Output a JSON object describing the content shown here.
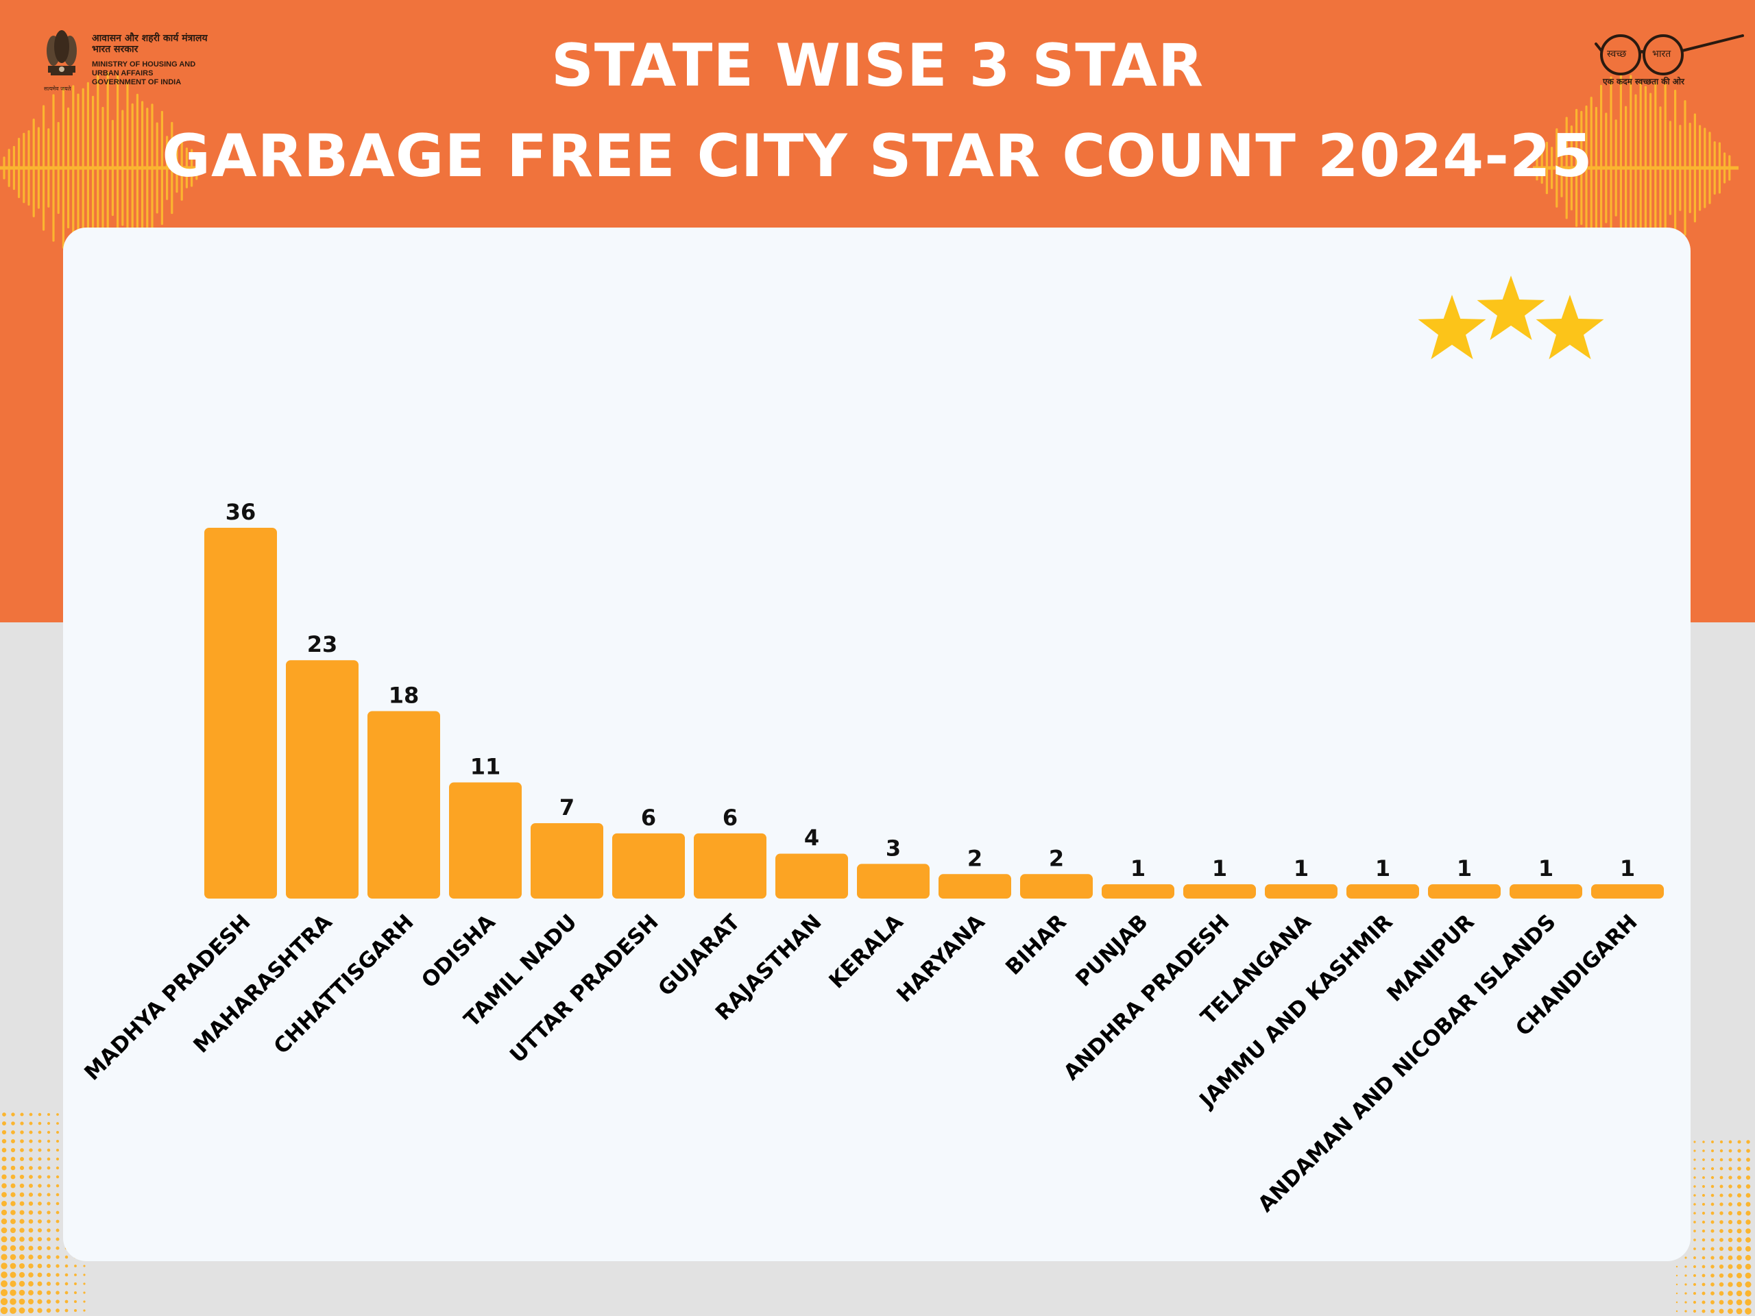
{
  "header": {
    "title_line_1": "STATE WISE 3 STAR",
    "title_line_2": "GARBAGE FREE CITY STAR COUNT 2024-25",
    "ministry_hindi": "आवासन और शहरी कार्य मंत्रालय\nभारत सरकार",
    "ministry_english": "MINISTRY OF HOUSING AND\nURBAN AFFAIRS\nGOVERNMENT OF INDIA",
    "emblem_motto": "सत्यमेव जयते",
    "swachh_bharat_left": "स्वच्छ",
    "swachh_bharat_right": "भारत",
    "swachh_bharat_tagline": "एक कदम स्वच्छता की ओर"
  },
  "colors": {
    "header_background": "#f0733c",
    "page_background": "#e2e2e2",
    "card_background": "#f5f9fd",
    "bar": "#fca423",
    "star": "#fcc419",
    "text": "#111111"
  },
  "stars_badge": {
    "count": 3,
    "icon": "star-icon"
  },
  "chart_data": {
    "type": "bar",
    "title": "STATE WISE 3 STAR GARBAGE FREE CITY STAR COUNT 2024-25",
    "xlabel": "",
    "ylabel": "",
    "ylim": [
      0,
      36
    ],
    "grid": false,
    "data_labels": true,
    "categories": [
      "MADHYA PRADESH",
      "MAHARASHTRA",
      "CHHATTISGARH",
      "ODISHA",
      "TAMIL NADU",
      "UTTAR PRADESH",
      "GUJARAT",
      "RAJASTHAN",
      "KERALA",
      "HARYANA",
      "BIHAR",
      "PUNJAB",
      "ANDHRA PRADESH",
      "TELANGANA",
      "JAMMU AND KASHMIR",
      "MANIPUR",
      "ANDAMAN AND NICOBAR ISLANDS",
      "CHANDIGARH"
    ],
    "values": [
      36,
      23,
      18,
      11,
      7,
      6,
      6,
      4,
      3,
      2,
      2,
      1,
      1,
      1,
      1,
      1,
      1,
      1
    ]
  }
}
